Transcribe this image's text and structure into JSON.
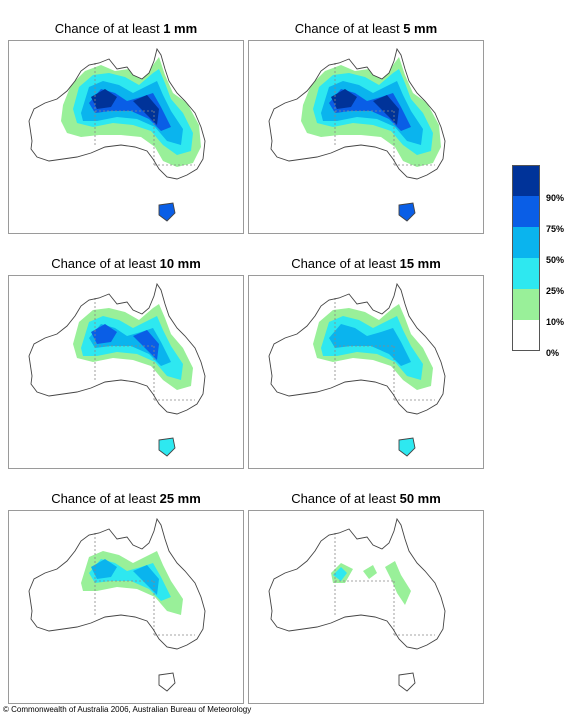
{
  "panels": [
    {
      "prefix": "Chance of at least",
      "amount": "1 mm",
      "level": 0
    },
    {
      "prefix": "Chance of at least",
      "amount": "5 mm",
      "level": 1
    },
    {
      "prefix": "Chance of at least",
      "amount": "10 mm",
      "level": 2
    },
    {
      "prefix": "Chance of at least",
      "amount": "15 mm",
      "level": 3
    },
    {
      "prefix": "Chance of at least",
      "amount": "25 mm",
      "level": 4
    },
    {
      "prefix": "Chance of at least",
      "amount": "50 mm",
      "level": 5
    }
  ],
  "legend": {
    "colors": [
      "#003399",
      "#0a5ee6",
      "#0ab4ee",
      "#2ee8f0",
      "#99f099",
      "#ffffff"
    ],
    "labels": [
      "90%",
      "75%",
      "50%",
      "25%",
      "10%",
      "0%"
    ]
  },
  "copyright": "© Commonwealth of Australia 2006, Australian Bureau of Meteorology"
}
